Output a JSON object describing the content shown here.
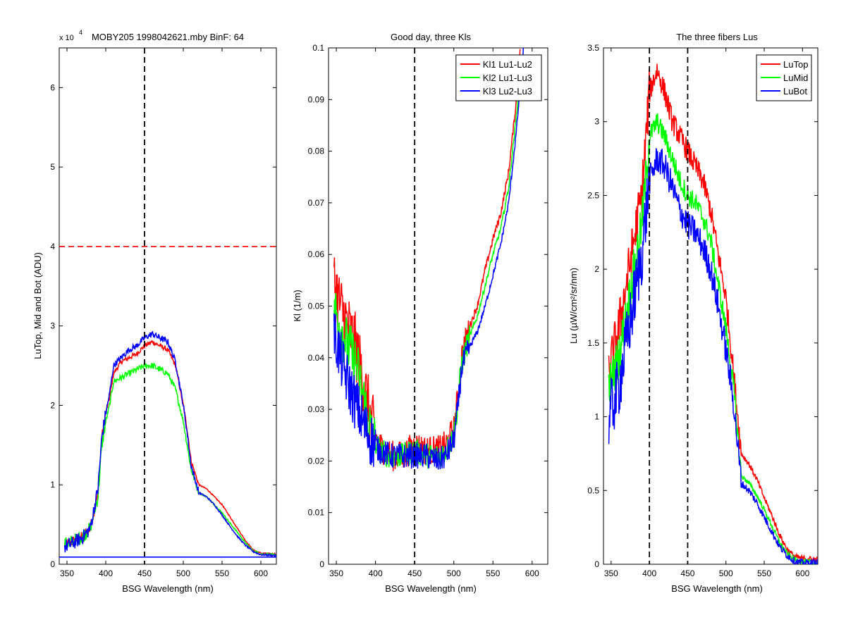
{
  "chart_data": [
    {
      "type": "line",
      "title": "MOBY205  1998042621.mby BinF: 64",
      "exponent_label": "x 10",
      "exponent_power": "4",
      "xlabel": "BSG Wavelength (nm)",
      "ylabel": "LuTop, Mid and Bot (ADU)",
      "xlim": [
        340,
        620
      ],
      "ylim": [
        0,
        6.5
      ],
      "y_scale": 10000,
      "xticks": [
        350,
        400,
        450,
        500,
        550,
        600
      ],
      "yticks": [
        0,
        1,
        2,
        3,
        4,
        5,
        6
      ],
      "grid": false,
      "legend": null,
      "ref_lines": [
        {
          "orient": "vertical",
          "value": 450,
          "color": "#000000",
          "style": "dashed"
        },
        {
          "orient": "horizontal",
          "value": 4,
          "color": "#ff0000",
          "style": "dashed"
        },
        {
          "orient": "horizontal",
          "value": 0.09,
          "color": "#0000ff",
          "style": "solid"
        }
      ],
      "series": [
        {
          "color": "#ff0000",
          "noise": 0.03,
          "x": [
            347,
            360,
            370,
            380,
            390,
            395,
            400,
            405,
            410,
            420,
            430,
            440,
            450,
            460,
            470,
            480,
            490,
            500,
            505,
            510,
            520,
            530,
            540,
            550,
            560,
            570,
            580,
            590,
            600,
            620
          ],
          "y": [
            0.25,
            0.3,
            0.35,
            0.45,
            0.9,
            1.6,
            1.9,
            2.1,
            2.4,
            2.55,
            2.6,
            2.65,
            2.75,
            2.8,
            2.75,
            2.7,
            2.5,
            2.0,
            1.7,
            1.3,
            1.0,
            0.95,
            0.85,
            0.75,
            0.6,
            0.45,
            0.3,
            0.18,
            0.14,
            0.13
          ]
        },
        {
          "color": "#00ff00",
          "noise": 0.04,
          "x": [
            347,
            360,
            370,
            380,
            390,
            395,
            400,
            405,
            410,
            420,
            430,
            440,
            450,
            460,
            470,
            480,
            490,
            500,
            505,
            510,
            520,
            530,
            540,
            550,
            560,
            570,
            580,
            590,
            600,
            620
          ],
          "y": [
            0.25,
            0.3,
            0.35,
            0.45,
            0.85,
            1.5,
            1.8,
            2.0,
            2.3,
            2.35,
            2.4,
            2.45,
            2.5,
            2.5,
            2.45,
            2.4,
            2.2,
            1.8,
            1.5,
            1.2,
            0.9,
            0.85,
            0.75,
            0.65,
            0.52,
            0.4,
            0.27,
            0.17,
            0.13,
            0.12
          ]
        },
        {
          "color": "#0000ff",
          "noise": 0.04,
          "x": [
            347,
            360,
            370,
            380,
            390,
            395,
            400,
            405,
            410,
            420,
            430,
            440,
            450,
            460,
            470,
            480,
            490,
            500,
            505,
            510,
            520,
            530,
            540,
            550,
            560,
            570,
            580,
            590,
            600,
            620
          ],
          "y": [
            0.22,
            0.28,
            0.34,
            0.45,
            0.95,
            1.6,
            1.9,
            2.15,
            2.5,
            2.6,
            2.7,
            2.75,
            2.85,
            2.9,
            2.85,
            2.8,
            2.55,
            2.0,
            1.65,
            1.25,
            0.9,
            0.85,
            0.75,
            0.62,
            0.48,
            0.35,
            0.24,
            0.16,
            0.12,
            0.11
          ]
        }
      ]
    },
    {
      "type": "line",
      "title": "Good day, three Kls",
      "xlabel": "BSG Wavelength (nm)",
      "ylabel": "Kl (1/m)",
      "xlim": [
        340,
        620
      ],
      "ylim": [
        0,
        0.1
      ],
      "xticks": [
        350,
        400,
        450,
        500,
        550,
        600
      ],
      "yticks": [
        0,
        0.01,
        0.02,
        0.03,
        0.04,
        0.05,
        0.06,
        0.07,
        0.08,
        0.09,
        0.1
      ],
      "grid": false,
      "legend": "top-right",
      "ref_lines": [
        {
          "orient": "vertical",
          "value": 450,
          "color": "#000000",
          "style": "dashed"
        }
      ],
      "series": [
        {
          "name": "Kl1 Lu1-Lu2",
          "color": "#ff0000",
          "noise": 0.003,
          "x": [
            347,
            355,
            365,
            375,
            385,
            395,
            405,
            420,
            435,
            450,
            465,
            480,
            490,
            500,
            505,
            510,
            520,
            530,
            540,
            550,
            560,
            570,
            580,
            585
          ],
          "y": [
            0.055,
            0.05,
            0.046,
            0.042,
            0.035,
            0.027,
            0.023,
            0.021,
            0.021,
            0.023,
            0.022,
            0.022,
            0.023,
            0.026,
            0.032,
            0.04,
            0.046,
            0.05,
            0.057,
            0.063,
            0.068,
            0.076,
            0.09,
            0.1
          ]
        },
        {
          "name": "Kl2 Lu1-Lu3",
          "color": "#00ff00",
          "noise": 0.0025,
          "x": [
            347,
            355,
            365,
            375,
            385,
            395,
            405,
            420,
            435,
            450,
            465,
            480,
            490,
            500,
            505,
            510,
            520,
            530,
            540,
            550,
            560,
            570,
            580,
            587
          ],
          "y": [
            0.05,
            0.046,
            0.042,
            0.039,
            0.032,
            0.025,
            0.022,
            0.021,
            0.021,
            0.022,
            0.021,
            0.021,
            0.022,
            0.025,
            0.031,
            0.039,
            0.044,
            0.048,
            0.054,
            0.06,
            0.065,
            0.073,
            0.087,
            0.1
          ]
        },
        {
          "name": "Kl3 Lu2-Lu3",
          "color": "#0000ff",
          "noise": 0.0025,
          "x": [
            347,
            355,
            365,
            375,
            385,
            395,
            405,
            420,
            435,
            450,
            465,
            480,
            490,
            500,
            505,
            510,
            520,
            530,
            540,
            550,
            560,
            570,
            580,
            589
          ],
          "y": [
            0.045,
            0.04,
            0.035,
            0.031,
            0.027,
            0.024,
            0.022,
            0.021,
            0.021,
            0.021,
            0.021,
            0.02,
            0.021,
            0.024,
            0.03,
            0.038,
            0.042,
            0.045,
            0.05,
            0.056,
            0.062,
            0.07,
            0.084,
            0.1
          ]
        }
      ]
    },
    {
      "type": "line",
      "title": "The three fibers Lus",
      "xlabel": "BSG Wavelength (nm)",
      "ylabel": "Lu (µW/cm²/sr/nm)",
      "xlim": [
        340,
        620
      ],
      "ylim": [
        0,
        3.5
      ],
      "xticks": [
        350,
        400,
        450,
        500,
        550,
        600
      ],
      "yticks": [
        0,
        0.5,
        1,
        1.5,
        2,
        2.5,
        3,
        3.5
      ],
      "grid": false,
      "legend": "top-right",
      "ref_lines": [
        {
          "orient": "vertical",
          "value": 400,
          "color": "#000000",
          "style": "dashed"
        },
        {
          "orient": "vertical",
          "value": 450,
          "color": "#000000",
          "style": "dashed"
        }
      ],
      "series": [
        {
          "name": "LuTop",
          "color": "#ff0000",
          "noise": 0.08,
          "x": [
            347,
            360,
            370,
            380,
            390,
            400,
            410,
            420,
            430,
            440,
            450,
            460,
            470,
            480,
            490,
            500,
            510,
            520,
            530,
            540,
            550,
            560,
            570,
            580,
            590,
            600,
            620
          ],
          "y": [
            1.3,
            1.6,
            1.9,
            2.2,
            2.5,
            3.2,
            3.35,
            3.2,
            3.0,
            2.9,
            2.8,
            2.7,
            2.6,
            2.4,
            2.1,
            1.8,
            1.3,
            0.75,
            0.68,
            0.58,
            0.45,
            0.33,
            0.2,
            0.1,
            0.05,
            0.04,
            0.03
          ]
        },
        {
          "name": "LuMid",
          "color": "#00ff00",
          "noise": 0.07,
          "x": [
            347,
            360,
            370,
            380,
            390,
            400,
            410,
            420,
            430,
            440,
            450,
            460,
            470,
            480,
            490,
            500,
            510,
            520,
            530,
            540,
            550,
            560,
            570,
            580,
            590,
            600,
            620
          ],
          "y": [
            1.2,
            1.4,
            1.7,
            2.0,
            2.3,
            2.9,
            3.0,
            2.9,
            2.75,
            2.6,
            2.5,
            2.45,
            2.35,
            2.2,
            1.9,
            1.6,
            1.2,
            0.6,
            0.55,
            0.47,
            0.37,
            0.26,
            0.15,
            0.07,
            0.03,
            0.02,
            0.01
          ]
        },
        {
          "name": "LuBot",
          "color": "#0000ff",
          "noise": 0.1,
          "x": [
            347,
            360,
            370,
            380,
            390,
            400,
            410,
            420,
            430,
            440,
            450,
            460,
            470,
            480,
            490,
            500,
            510,
            520,
            530,
            540,
            550,
            560,
            570,
            580,
            590,
            600,
            620
          ],
          "y": [
            1.0,
            1.2,
            1.5,
            1.8,
            2.1,
            2.6,
            2.75,
            2.7,
            2.55,
            2.4,
            2.3,
            2.25,
            2.15,
            2.0,
            1.75,
            1.45,
            1.1,
            0.55,
            0.5,
            0.42,
            0.32,
            0.22,
            0.12,
            0.06,
            0.02,
            0.01,
            0.01
          ]
        }
      ]
    }
  ]
}
